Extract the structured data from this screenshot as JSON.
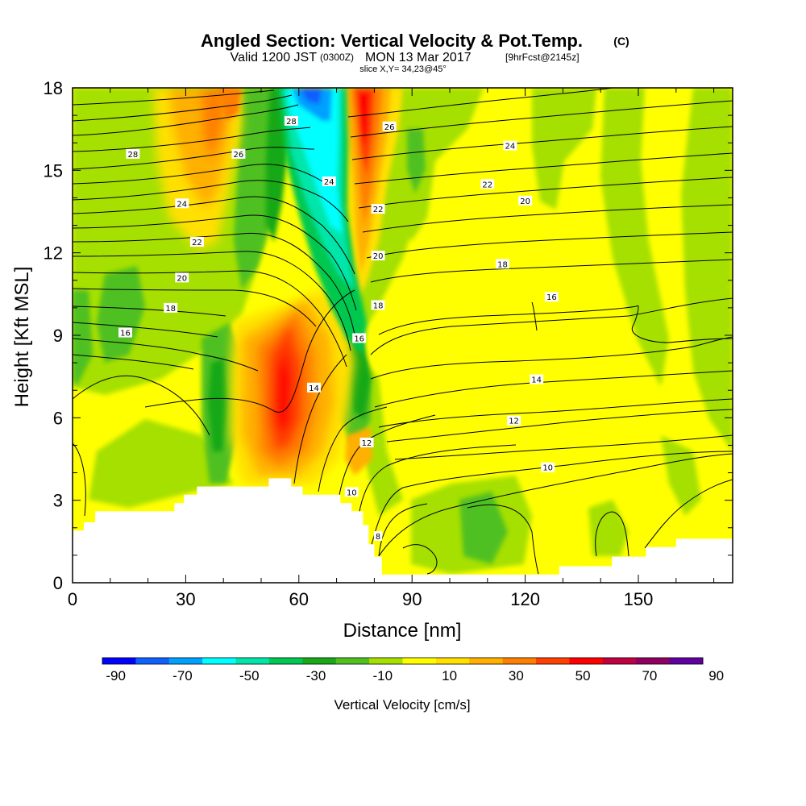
{
  "chart_data": {
    "type": "heatmap",
    "title": "Angled Section: Vertical Velocity & Pot.Temp.",
    "title_unit": "(C)",
    "subtitle_main": "Valid 1200 JST",
    "subtitle_z": "(0300Z)",
    "subtitle_date": "MON 13 Mar 2017",
    "subtitle_fcst": "[9hrFcst@2145z]",
    "subtitle_slice": "slice X,Y= 34,23@45°",
    "xlabel": "Distance [nm]",
    "ylabel": "Height [Kft MSL]",
    "xlim": [
      0,
      175
    ],
    "ylim": [
      0,
      18
    ],
    "x_ticks": [
      0,
      30,
      60,
      90,
      120,
      150
    ],
    "y_ticks": [
      0,
      3,
      6,
      9,
      12,
      15,
      18
    ],
    "colorbar": {
      "label": "Vertical Velocity [cm/s]",
      "tick_labels": [
        -90,
        -70,
        -50,
        -30,
        -10,
        10,
        30,
        50,
        70,
        90
      ],
      "colors": [
        "#0000ff",
        "#1060ff",
        "#00a0ff",
        "#00ffff",
        "#00e6aa",
        "#00c850",
        "#18a818",
        "#50c020",
        "#a6e000",
        "#ffff00",
        "#ffe000",
        "#ffb000",
        "#ff8000",
        "#ff4000",
        "#ff0000",
        "#c00040",
        "#900060",
        "#6000a0"
      ]
    },
    "velocity_regions": [
      {
        "name": "updraft-core-low",
        "x": 55,
        "y": 7.5,
        "value": 70
      },
      {
        "name": "updraft-high",
        "x": 77,
        "y": 16.5,
        "value": 60
      },
      {
        "name": "updraft-left-high",
        "x": 42,
        "y": 16.5,
        "value": 35
      },
      {
        "name": "downdraft-core",
        "x": 63,
        "y": 17,
        "value": -55
      },
      {
        "name": "downdraft-mid",
        "x": 70,
        "y": 13.5,
        "value": -45
      }
    ],
    "theta_contours": [
      {
        "value": 8,
        "label": "8",
        "lx": 81,
        "ly": 1.7
      },
      {
        "value": 10,
        "label": "10",
        "lx": 74,
        "ly": 3.3,
        "label2": "10",
        "lx2": 126,
        "ly2": 4.2
      },
      {
        "value": 12,
        "label": "12",
        "lx": 78,
        "ly": 5.1,
        "label2": "12",
        "lx2": 117,
        "ly2": 5.9
      },
      {
        "value": 14,
        "label": "14",
        "lx": 64,
        "ly": 7.1,
        "label2": "14",
        "lx2": 123,
        "ly2": 7.4
      },
      {
        "value": 16,
        "label": "16",
        "lx": 14,
        "ly": 9.1,
        "label2": "16",
        "lx2": 127,
        "ly2": 10.4
      },
      {
        "value": 16,
        "label": "16",
        "lx": 76,
        "ly": 8.9
      },
      {
        "value": 18,
        "label": "18",
        "lx": 26,
        "ly": 10.0,
        "label2": "18",
        "lx2": 114,
        "ly2": 11.6
      },
      {
        "value": 18,
        "label": "18",
        "lx": 81,
        "ly": 10.1
      },
      {
        "value": 20,
        "label": "20",
        "lx": 29,
        "ly": 11.1,
        "label2": "20",
        "lx2": 120,
        "ly2": 13.9
      },
      {
        "value": 20,
        "label": "20",
        "lx": 81,
        "ly": 11.9
      },
      {
        "value": 22,
        "label": "22",
        "lx": 33,
        "ly": 12.4,
        "label2": "22",
        "lx2": 110,
        "ly2": 14.5
      },
      {
        "value": 22,
        "label": "22",
        "lx": 81,
        "ly": 13.6
      },
      {
        "value": 24,
        "label": "24",
        "lx": 29,
        "ly": 13.8,
        "label2": "24",
        "lx2": 116,
        "ly2": 15.9
      },
      {
        "value": 24,
        "label": "24",
        "lx": 68,
        "ly": 14.6
      },
      {
        "value": 26,
        "label": "26",
        "lx": 44,
        "ly": 15.6,
        "label2": "26",
        "lx2": 84,
        "ly2": 16.6
      },
      {
        "value": 28,
        "label": "28",
        "lx": 16,
        "ly": 15.6,
        "label2": "28",
        "lx2": 58,
        "ly2": 16.8
      }
    ],
    "terrain": [
      [
        0,
        1.9
      ],
      [
        3,
        1.9
      ],
      [
        3,
        2.2
      ],
      [
        6,
        2.2
      ],
      [
        6,
        2.6
      ],
      [
        27,
        2.6
      ],
      [
        27,
        2.9
      ],
      [
        29.5,
        2.9
      ],
      [
        29.5,
        3.2
      ],
      [
        33,
        3.2
      ],
      [
        33,
        3.5
      ],
      [
        52,
        3.5
      ],
      [
        52,
        3.8
      ],
      [
        58,
        3.8
      ],
      [
        58,
        3.5
      ],
      [
        61,
        3.5
      ],
      [
        61,
        3.2
      ],
      [
        71,
        3.2
      ],
      [
        71,
        2.9
      ],
      [
        74,
        2.9
      ],
      [
        74,
        2.6
      ],
      [
        77,
        2.6
      ],
      [
        77,
        2.1
      ],
      [
        78.5,
        2.1
      ],
      [
        78.5,
        1.4
      ],
      [
        80,
        1.4
      ],
      [
        80,
        0.95
      ],
      [
        82,
        0.95
      ],
      [
        82,
        0.3
      ],
      [
        129,
        0.3
      ],
      [
        129,
        0.6
      ],
      [
        142,
        0.6
      ],
      [
        142,
        0.6
      ],
      [
        143,
        0.6
      ],
      [
        143,
        0.95
      ],
      [
        152,
        0.95
      ],
      [
        152,
        1.3
      ],
      [
        160,
        1.3
      ],
      [
        160,
        1.6
      ],
      [
        166,
        1.6
      ],
      [
        166,
        1.6
      ],
      [
        175,
        1.6
      ],
      [
        175,
        0
      ],
      [
        0,
        0
      ]
    ]
  }
}
